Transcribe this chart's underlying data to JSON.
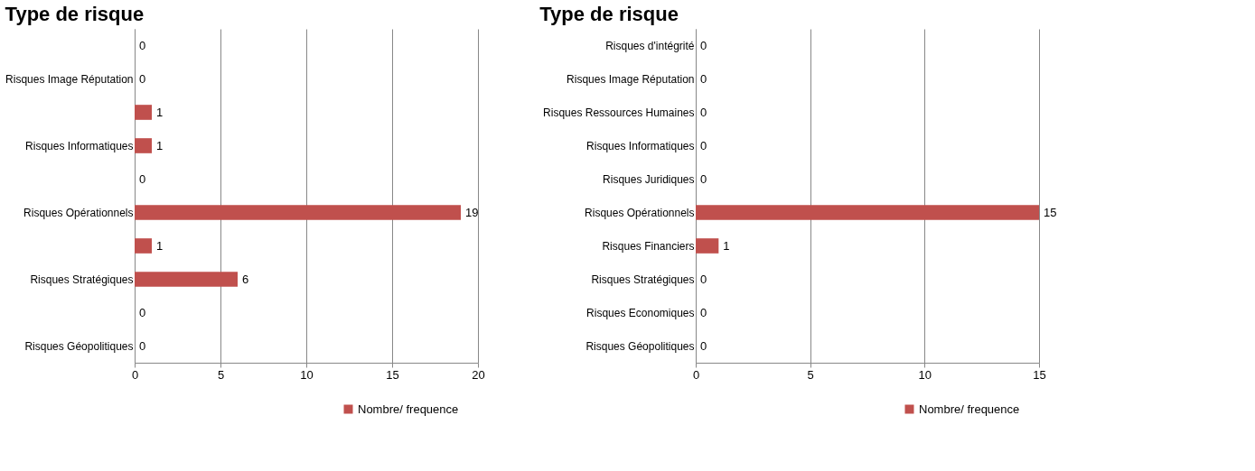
{
  "chart_data": [
    {
      "type": "bar",
      "orientation": "horizontal",
      "title": "Type de risque",
      "categories": [
        null,
        "Risques Image Réputation",
        null,
        "Risques Informatiques",
        null,
        "Risques  Opérationnels",
        null,
        "Risques Stratégiques",
        null,
        "Risques Géopolitiques"
      ],
      "series": [
        {
          "name": "Nombre/ frequence",
          "color": "#c0504d",
          "values": [
            0,
            0,
            1,
            1,
            0,
            19,
            1,
            6,
            0,
            0
          ]
        }
      ],
      "xlim": [
        0,
        20
      ],
      "xticks": [
        0,
        5,
        10,
        15,
        20
      ],
      "grid": "x",
      "legend": "bottom right",
      "data_labels": true
    },
    {
      "type": "bar",
      "orientation": "horizontal",
      "title": "Type de risque",
      "categories": [
        "Risques d'intégrité",
        "Risques Image Réputation",
        "Risques Ressources  Humaines",
        "Risques Informatiques",
        "Risques Juridiques",
        "Risques  Opérationnels",
        "Risques Financiers",
        "Risques Stratégiques",
        "Risques Economiques",
        "Risques Géopolitiques"
      ],
      "series": [
        {
          "name": "Nombre/ frequence",
          "color": "#c0504d",
          "values": [
            0,
            0,
            0,
            0,
            0,
            15,
            1,
            0,
            0,
            0
          ]
        }
      ],
      "xlim": [
        0,
        15
      ],
      "xticks": [
        0,
        5,
        10,
        15
      ],
      "grid": "x",
      "legend": "bottom right",
      "data_labels": true
    }
  ]
}
